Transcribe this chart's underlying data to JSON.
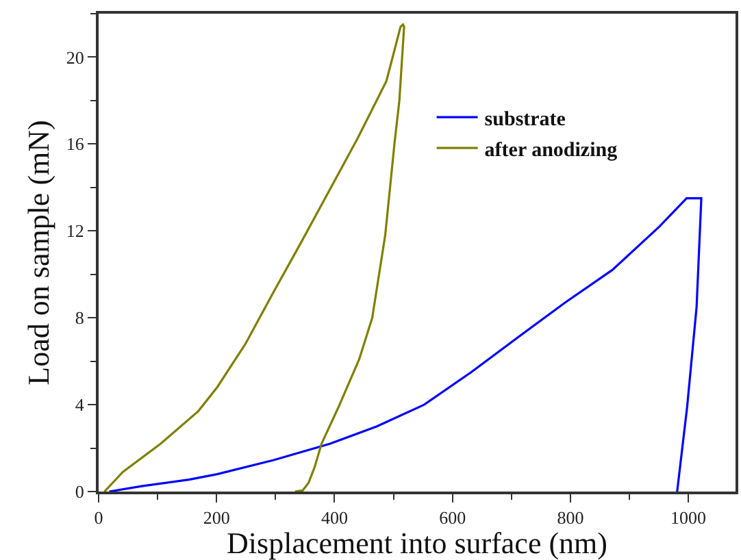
{
  "chart_data": {
    "type": "line",
    "xlabel": "Displacement into surface (nm)",
    "ylabel": "Load on sample (mN)",
    "xlim": [
      0,
      1080
    ],
    "ylim": [
      0,
      22
    ],
    "xticks": [
      0,
      200,
      400,
      600,
      800,
      1000
    ],
    "yticks": [
      0,
      4,
      8,
      12,
      16,
      20
    ],
    "legend": "top right",
    "marker": "none",
    "line_style": "solid",
    "series": [
      {
        "name": "substrate",
        "color": "#0000ff",
        "x": [
          18,
          73,
          153,
          201,
          297,
          392,
          472,
          552,
          632,
          711,
          791,
          871,
          951,
          997,
          1022,
          1014,
          998,
          981
        ],
        "values": [
          0,
          0.25,
          0.55,
          0.8,
          1.45,
          2.2,
          3.0,
          4.0,
          5.5,
          7.1,
          8.7,
          10.2,
          12.2,
          13.5,
          13.5,
          8.5,
          3.9,
          0
        ]
      },
      {
        "name": "after anodizing",
        "color": "#808000",
        "x": [
          10,
          41,
          105,
          169,
          201,
          249,
          297,
          344,
          392,
          440,
          488,
          512,
          516,
          518,
          510,
          502,
          486,
          464,
          442,
          407,
          378,
          366,
          356,
          346,
          333
        ],
        "values": [
          0,
          0.9,
          2.2,
          3.7,
          4.8,
          6.8,
          9.2,
          11.5,
          13.9,
          16.3,
          18.9,
          21.4,
          21.5,
          21.4,
          18,
          16.1,
          11.8,
          8,
          6.1,
          3.9,
          2.2,
          1.1,
          0.4,
          0.05,
          0
        ]
      }
    ]
  }
}
